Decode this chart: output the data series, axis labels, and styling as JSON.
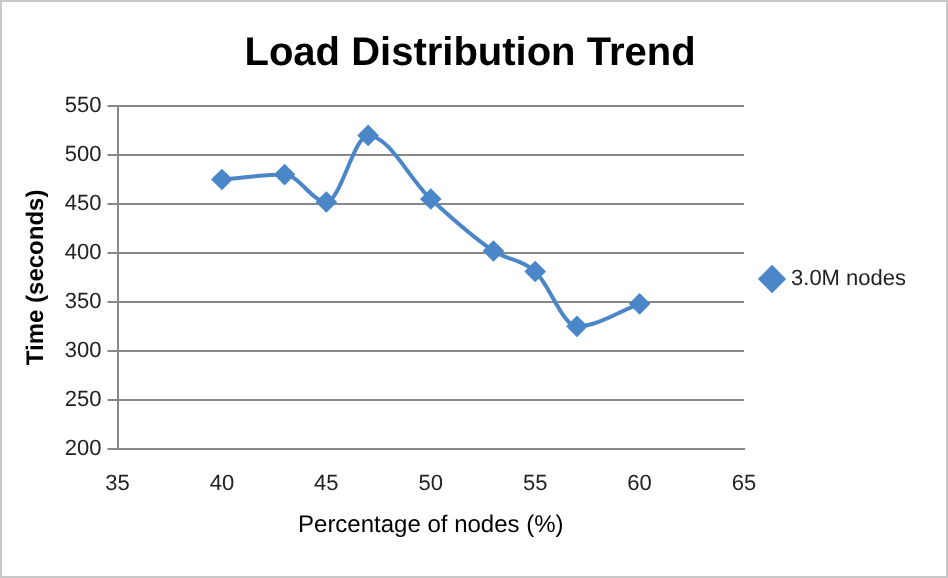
{
  "chart_data": {
    "type": "line",
    "title": "Load Distribution Trend",
    "xlabel": "Percentage of nodes (%)",
    "ylabel": "Time (seconds)",
    "x": [
      40,
      43,
      45,
      47,
      50,
      53,
      55,
      57,
      60
    ],
    "series": [
      {
        "name": "3.0M nodes",
        "color": "#4a86c8",
        "values": [
          475,
          480,
          452,
          520,
          455,
          402,
          381,
          325,
          348
        ]
      }
    ],
    "xlim": [
      35,
      65
    ],
    "xticks": [
      35,
      40,
      45,
      50,
      55,
      60,
      65
    ],
    "ylim": [
      200,
      550
    ],
    "yticks": [
      200,
      250,
      300,
      350,
      400,
      450,
      500,
      550
    ],
    "grid": "y",
    "legend": "right",
    "marker": "diamond",
    "line_style": "solid"
  }
}
